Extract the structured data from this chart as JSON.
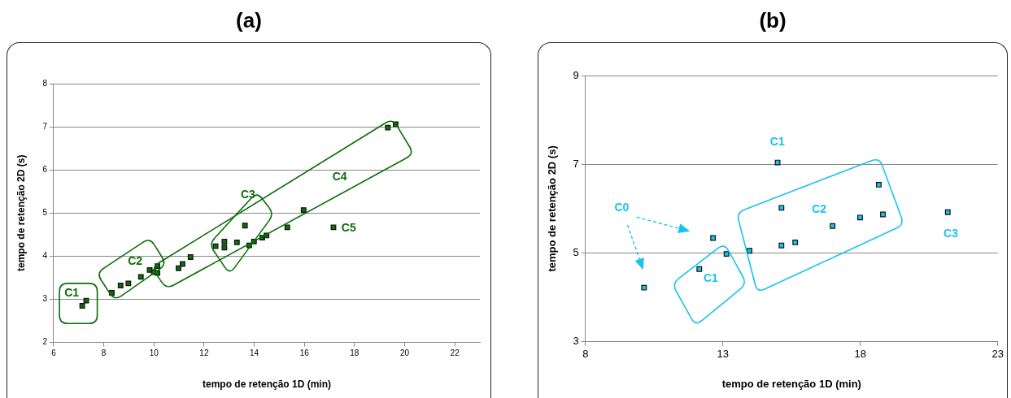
{
  "chart_data": [
    {
      "type": "scatter",
      "title": "(a)",
      "xlabel": "tempo de retenção 1D (min)",
      "ylabel": "tempo de retenção 2D (s)",
      "xlim": [
        6,
        23
      ],
      "ylim": [
        2,
        8
      ],
      "xticks": [
        6,
        8,
        10,
        12,
        14,
        16,
        18,
        20,
        22
      ],
      "yticks": [
        2,
        3,
        4,
        5,
        6,
        7,
        8
      ],
      "grid": "y",
      "marker": "square",
      "legend": false,
      "series": [
        {
          "color": "#0a6e0a",
          "x": [
            7.14,
            7.3,
            8.32,
            8.67,
            8.98,
            9.48,
            9.83,
            9.99,
            10.14,
            10.14,
            10.98,
            11.14,
            11.46,
            12.46,
            12.81,
            12.81,
            13.31,
            13.63,
            13.8,
            13.99,
            14.32,
            14.49,
            15.32,
            15.97,
            17.16,
            19.33,
            19.64
          ],
          "values": [
            2.85,
            2.97,
            3.15,
            3.32,
            3.37,
            3.52,
            3.68,
            3.63,
            3.77,
            3.61,
            3.72,
            3.82,
            3.98,
            4.23,
            4.34,
            4.2,
            4.32,
            4.71,
            4.25,
            4.34,
            4.43,
            4.48,
            4.67,
            5.07,
            4.67,
            6.98,
            7.06
          ]
        }
      ],
      "annotations": [
        "C1",
        "C2",
        "C3",
        "C4",
        "C5"
      ]
    },
    {
      "type": "scatter",
      "title": "(b)",
      "xlabel": "tempo de retenção 1D (min)",
      "ylabel": "tempo de retenção 2D (s)",
      "xlim": [
        8,
        23
      ],
      "ylim": [
        3,
        9
      ],
      "xticks": [
        8,
        13,
        18,
        23
      ],
      "yticks": [
        3,
        5,
        7,
        9
      ],
      "grid": "y",
      "marker": "square",
      "legend": false,
      "series": [
        {
          "color": "#19c3f0",
          "x": [
            10.13,
            12.14,
            12.64,
            13.13,
            13.97,
            14.99,
            15.13,
            15.13,
            15.63,
            16.99,
            17.99,
            18.67,
            18.82,
            21.18
          ],
          "values": [
            4.22,
            4.64,
            5.34,
            4.98,
            5.05,
            7.04,
            6.02,
            5.17,
            5.24,
            5.61,
            5.8,
            6.54,
            5.87,
            5.92
          ]
        }
      ],
      "annotations": [
        "C0",
        "C1",
        "C1",
        "C2",
        "C3"
      ]
    }
  ]
}
